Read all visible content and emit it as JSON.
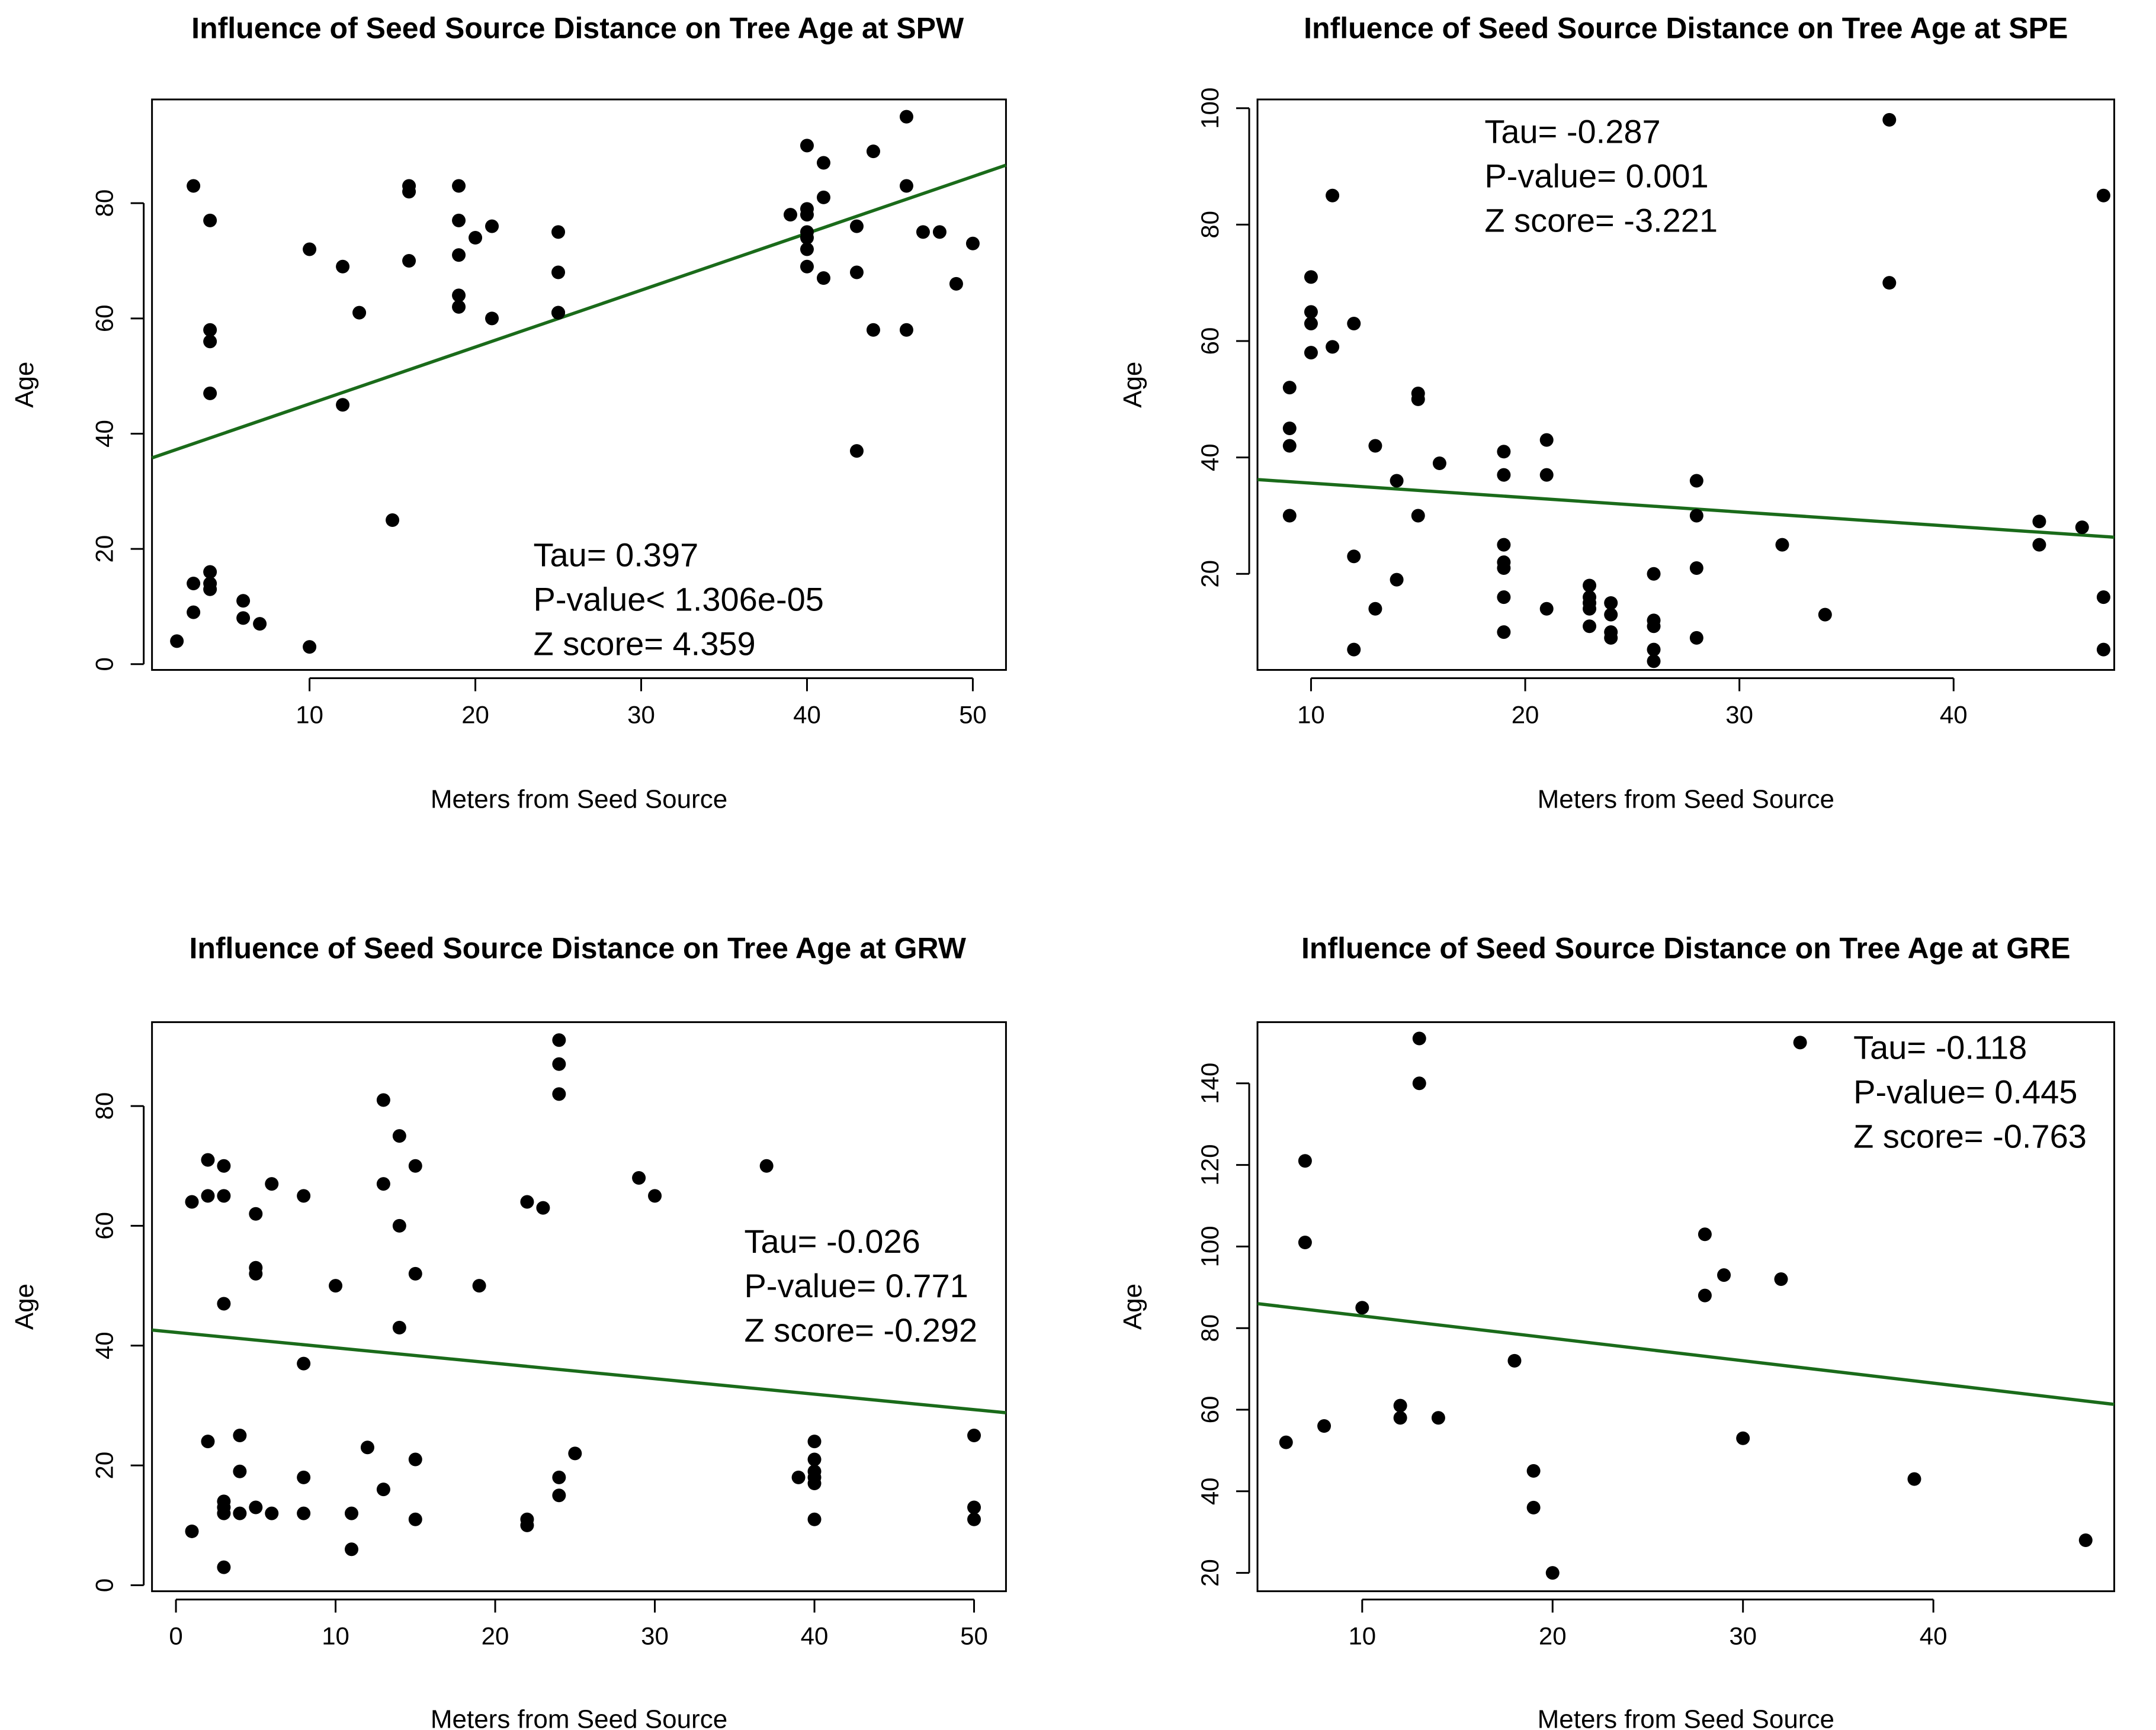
{
  "chart_data": [
    {
      "type": "scatter",
      "title": "Influence of Seed Source Distance on Tree Age at SPW",
      "xlabel": "Meters from Seed Source",
      "ylabel": "Age",
      "xlim": [
        0.5,
        52
      ],
      "ylim": [
        -1,
        98
      ],
      "xticks": [
        10,
        20,
        30,
        40,
        50
      ],
      "yticks": [
        0,
        20,
        40,
        60,
        80
      ],
      "grid": false,
      "trend_color": "#1a6b1a",
      "trend": {
        "x1": 0.5,
        "y1": 35.8,
        "x2": 52,
        "y2": 86.6
      },
      "stats": [
        "Tau= 0.397",
        "P-value< 1.306e-05",
        "Z score= 4.359"
      ],
      "stats_anchor": {
        "x": 23.5,
        "y": 17
      },
      "x": [
        2,
        3,
        3,
        3,
        4,
        4,
        4,
        4,
        4,
        4,
        4,
        6,
        6,
        7,
        10,
        10,
        12,
        12,
        13,
        15,
        16,
        16,
        16,
        19,
        19,
        19,
        19,
        19,
        20,
        21,
        21,
        25,
        25,
        25,
        25,
        39,
        40,
        40,
        40,
        40,
        40,
        40,
        40,
        41,
        41,
        41,
        43,
        43,
        43,
        44,
        44,
        46,
        46,
        46,
        47,
        48,
        49,
        50
      ],
      "y": [
        4,
        14,
        9,
        83,
        77,
        58,
        56,
        47,
        16,
        14,
        13,
        11,
        8,
        7,
        72,
        3,
        69,
        45,
        61,
        25,
        83,
        82,
        70,
        83,
        77,
        71,
        64,
        62,
        74,
        76,
        60,
        75,
        68,
        61,
        61,
        78,
        90,
        79,
        75,
        72,
        69,
        78,
        74,
        87,
        81,
        67,
        76,
        68,
        37,
        89,
        58,
        95,
        83,
        58,
        75,
        75,
        66,
        73
      ]
    },
    {
      "type": "scatter",
      "title": "Influence of Seed Source Distance on Tree Age at SPE",
      "xlabel": "Meters from Seed Source",
      "ylabel": "Age",
      "xlim": [
        7.5,
        47.5
      ],
      "ylim": [
        3.5,
        101.5
      ],
      "xticks": [
        10,
        20,
        30,
        40
      ],
      "yticks": [
        20,
        40,
        60,
        80,
        100
      ],
      "grid": false,
      "trend_color": "#1a6b1a",
      "trend": {
        "x1": 7.5,
        "y1": 36.2,
        "x2": 47.5,
        "y2": 26.3
      },
      "stats": [
        "Tau= -0.287",
        "P-value= 0.001",
        "Z score= -3.221"
      ],
      "stats_anchor": {
        "x": 18.1,
        "y": 94
      },
      "x": [
        9,
        9,
        9,
        9,
        10,
        10,
        10,
        10,
        11,
        11,
        12,
        12,
        12,
        13,
        13,
        14,
        14,
        15,
        15,
        15,
        16,
        19,
        19,
        19,
        19,
        19,
        19,
        19,
        21,
        21,
        21,
        23,
        23,
        23,
        23,
        23,
        24,
        24,
        24,
        24,
        26,
        26,
        26,
        26,
        26,
        28,
        28,
        28,
        28,
        32,
        34,
        37,
        37,
        44,
        44,
        46,
        47,
        47,
        47
      ],
      "y": [
        52,
        45,
        42,
        30,
        71,
        65,
        63,
        58,
        85,
        59,
        63,
        23,
        7,
        42,
        14,
        36,
        19,
        51,
        50,
        30,
        39,
        41,
        37,
        25,
        22,
        21,
        16,
        10,
        43,
        37,
        14,
        18,
        16,
        15,
        14,
        11,
        15,
        13,
        10,
        9,
        20,
        12,
        11,
        7,
        5,
        36,
        30,
        21,
        9,
        25,
        13,
        98,
        70,
        29,
        25,
        28,
        85,
        16,
        7
      ]
    },
    {
      "type": "scatter",
      "title": "Influence of Seed Source Distance on Tree Age at GRW",
      "xlabel": "Meters from Seed Source",
      "ylabel": "Age",
      "xlim": [
        -1.5,
        52
      ],
      "ylim": [
        -1,
        94
      ],
      "xticks": [
        0,
        10,
        20,
        30,
        40,
        50
      ],
      "yticks": [
        0,
        20,
        40,
        60,
        80
      ],
      "grid": false,
      "trend_color": "#1a6b1a",
      "trend": {
        "x1": -1.5,
        "y1": 42.6,
        "x2": 52,
        "y2": 28.8
      },
      "stats": [
        "Tau= -0.026",
        "P-value= 0.771",
        "Z score= -0.292"
      ],
      "stats_anchor": {
        "x": 35.6,
        "y": 55.5
      },
      "x": [
        1,
        1,
        2,
        2,
        2,
        3,
        3,
        3,
        3,
        3,
        3,
        3,
        4,
        4,
        4,
        5,
        5,
        5,
        5,
        6,
        6,
        8,
        8,
        8,
        8,
        10,
        11,
        11,
        12,
        13,
        13,
        13,
        14,
        14,
        14,
        15,
        15,
        15,
        15,
        19,
        22,
        22,
        22,
        23,
        24,
        24,
        24,
        24,
        24,
        25,
        29,
        30,
        37,
        39,
        40,
        40,
        40,
        40,
        40,
        40,
        50,
        50,
        50
      ],
      "y": [
        64,
        9,
        71,
        65,
        24,
        70,
        65,
        47,
        14,
        13,
        12,
        3,
        25,
        19,
        12,
        62,
        53,
        52,
        13,
        67,
        12,
        65,
        37,
        18,
        12,
        50,
        12,
        6,
        23,
        81,
        67,
        16,
        75,
        60,
        43,
        70,
        52,
        21,
        11,
        50,
        64,
        11,
        10,
        63,
        91,
        87,
        82,
        18,
        15,
        22,
        68,
        65,
        70,
        18,
        24,
        21,
        19,
        18,
        17,
        11,
        25,
        13,
        11
      ]
    },
    {
      "type": "scatter",
      "title": "Influence of Seed Source Distance on Tree Age at GRE",
      "xlabel": "Meters from Seed Source",
      "ylabel": "Age",
      "xlim": [
        4.5,
        49.5
      ],
      "ylim": [
        15.5,
        155
      ],
      "xticks": [
        10,
        20,
        30,
        40
      ],
      "yticks": [
        20,
        40,
        60,
        80,
        100,
        120,
        140
      ],
      "grid": false,
      "trend_color": "#1a6b1a",
      "trend": {
        "x1": 4.5,
        "y1": 86,
        "x2": 49.5,
        "y2": 61.3
      },
      "stats": [
        "Tau= -0.118",
        "P-value= 0.445",
        "Z score= -0.763"
      ],
      "stats_anchor": {
        "x": 35.8,
        "y": 146
      },
      "x": [
        6,
        7,
        7,
        8,
        10,
        12,
        12,
        13,
        13,
        14,
        18,
        19,
        19,
        20,
        28,
        28,
        29,
        30,
        32,
        33,
        39,
        48
      ],
      "y": [
        52,
        121,
        101,
        56,
        85,
        61,
        58,
        151,
        140,
        58,
        72,
        45,
        36,
        20,
        103,
        88,
        93,
        53,
        92,
        150,
        43,
        28
      ]
    }
  ]
}
